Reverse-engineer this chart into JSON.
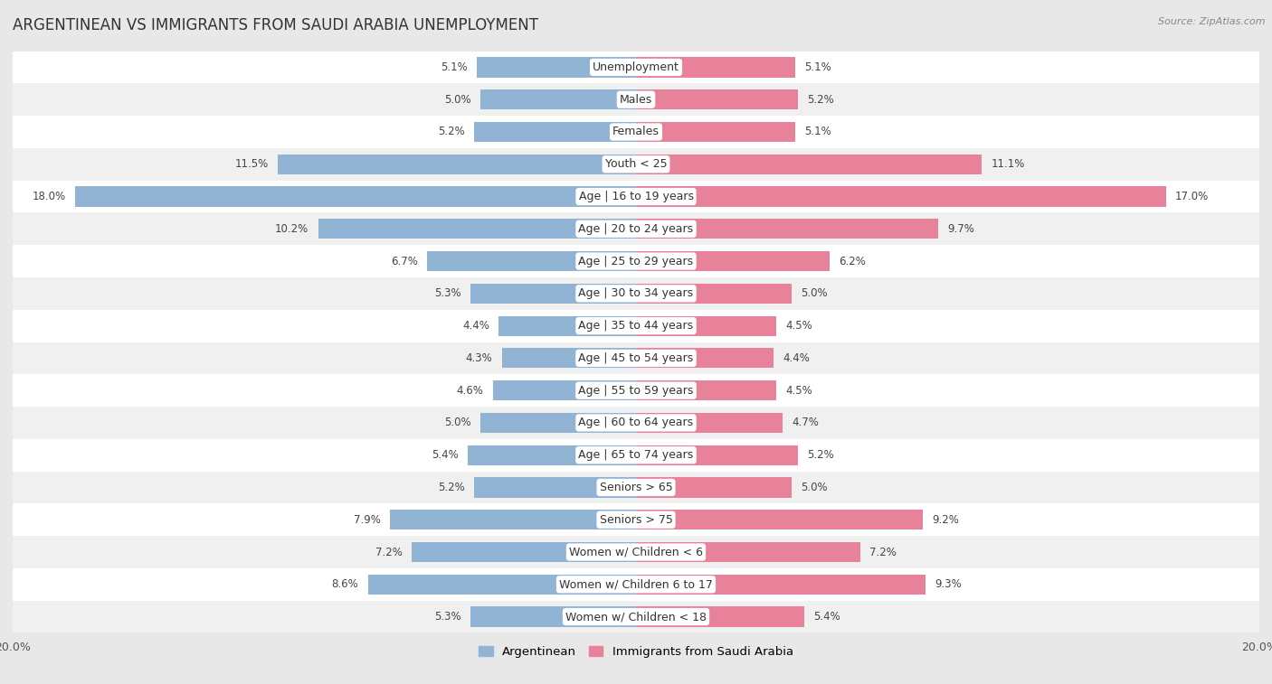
{
  "title": "ARGENTINEAN VS IMMIGRANTS FROM SAUDI ARABIA UNEMPLOYMENT",
  "source": "Source: ZipAtlas.com",
  "categories": [
    "Unemployment",
    "Males",
    "Females",
    "Youth < 25",
    "Age | 16 to 19 years",
    "Age | 20 to 24 years",
    "Age | 25 to 29 years",
    "Age | 30 to 34 years",
    "Age | 35 to 44 years",
    "Age | 45 to 54 years",
    "Age | 55 to 59 years",
    "Age | 60 to 64 years",
    "Age | 65 to 74 years",
    "Seniors > 65",
    "Seniors > 75",
    "Women w/ Children < 6",
    "Women w/ Children 6 to 17",
    "Women w/ Children < 18"
  ],
  "left_values": [
    5.1,
    5.0,
    5.2,
    11.5,
    18.0,
    10.2,
    6.7,
    5.3,
    4.4,
    4.3,
    4.6,
    5.0,
    5.4,
    5.2,
    7.9,
    7.2,
    8.6,
    5.3
  ],
  "right_values": [
    5.1,
    5.2,
    5.1,
    11.1,
    17.0,
    9.7,
    6.2,
    5.0,
    4.5,
    4.4,
    4.5,
    4.7,
    5.2,
    5.0,
    9.2,
    7.2,
    9.3,
    5.4
  ],
  "left_color": "#92b4d4",
  "right_color": "#e8829a",
  "row_color_even": "#f5f5f5",
  "row_color_odd": "#e8e8e8",
  "background_color": "#e8e8e8",
  "max_val": 20.0,
  "legend_left": "Argentinean",
  "legend_right": "Immigrants from Saudi Arabia",
  "title_fontsize": 12,
  "label_fontsize": 9,
  "value_fontsize": 8.5,
  "bar_height": 0.62
}
